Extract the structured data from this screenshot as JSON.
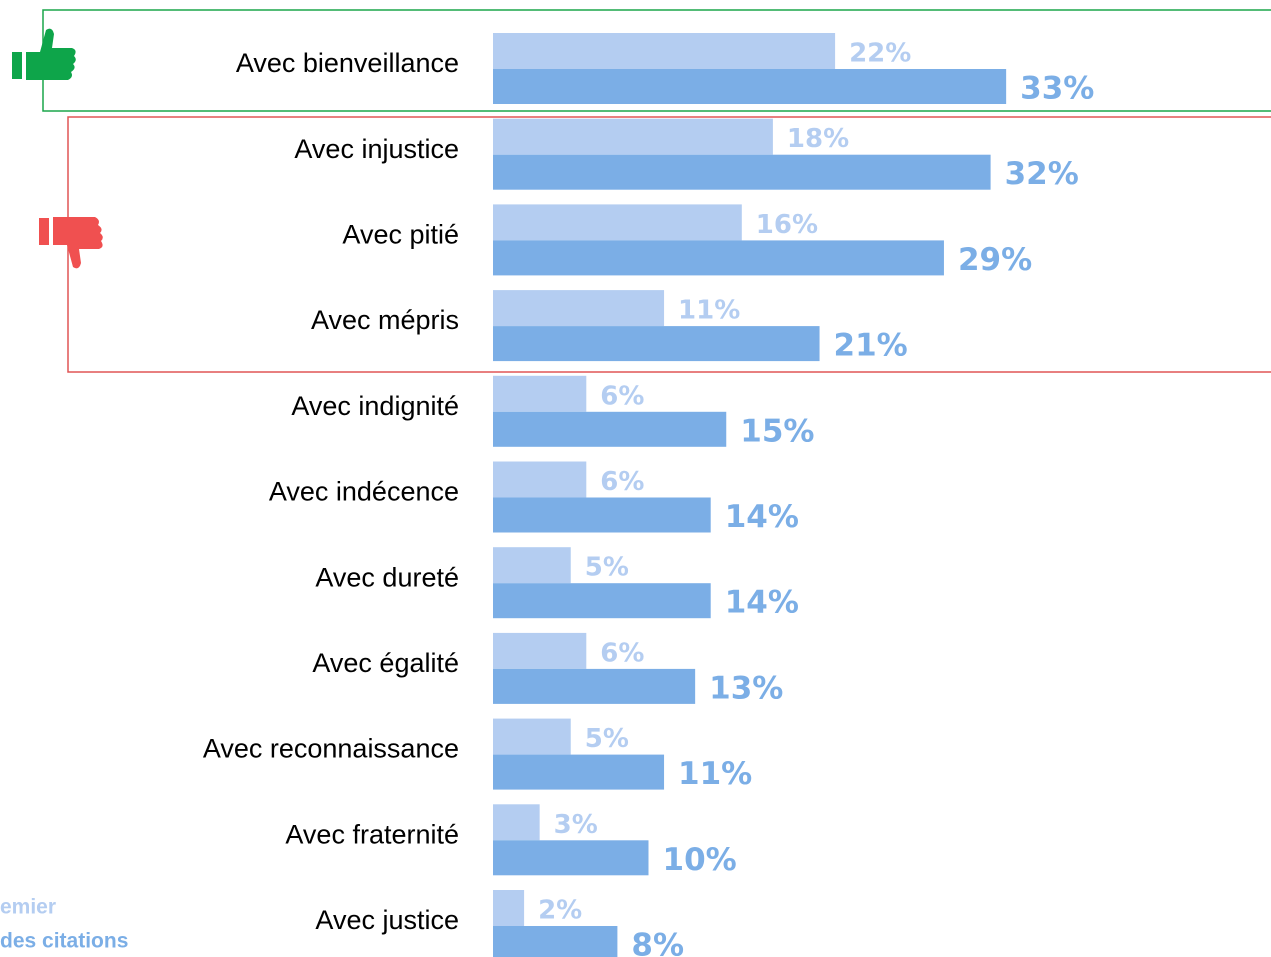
{
  "chart_data": {
    "type": "bar",
    "orientation": "horizontal",
    "categories": [
      "Avec bienveillance",
      "Avec injustice",
      "Avec pitié",
      "Avec mépris",
      "Avec indignité",
      "Avec indécence",
      "Avec dureté",
      "Avec égalité",
      "Avec reconnaissance",
      "Avec fraternité",
      "Avec justice"
    ],
    "series": [
      {
        "name": "emier",
        "color": "#b4cdf1",
        "values": [
          22,
          18,
          16,
          11,
          6,
          6,
          5,
          6,
          5,
          3,
          2
        ],
        "value_labels": [
          "22%",
          "18%",
          "16%",
          "11%",
          "6%",
          "6%",
          "5%",
          "6%",
          "5%",
          "3%",
          "2%"
        ]
      },
      {
        "name": "des citations",
        "color": "#7baee6",
        "values": [
          33,
          32,
          29,
          21,
          15,
          14,
          14,
          13,
          11,
          10,
          8
        ],
        "value_labels": [
          "33%",
          "32%",
          "29%",
          "21%",
          "15%",
          "14%",
          "14%",
          "13%",
          "11%",
          "10%",
          "8%"
        ]
      }
    ]
  }
}
